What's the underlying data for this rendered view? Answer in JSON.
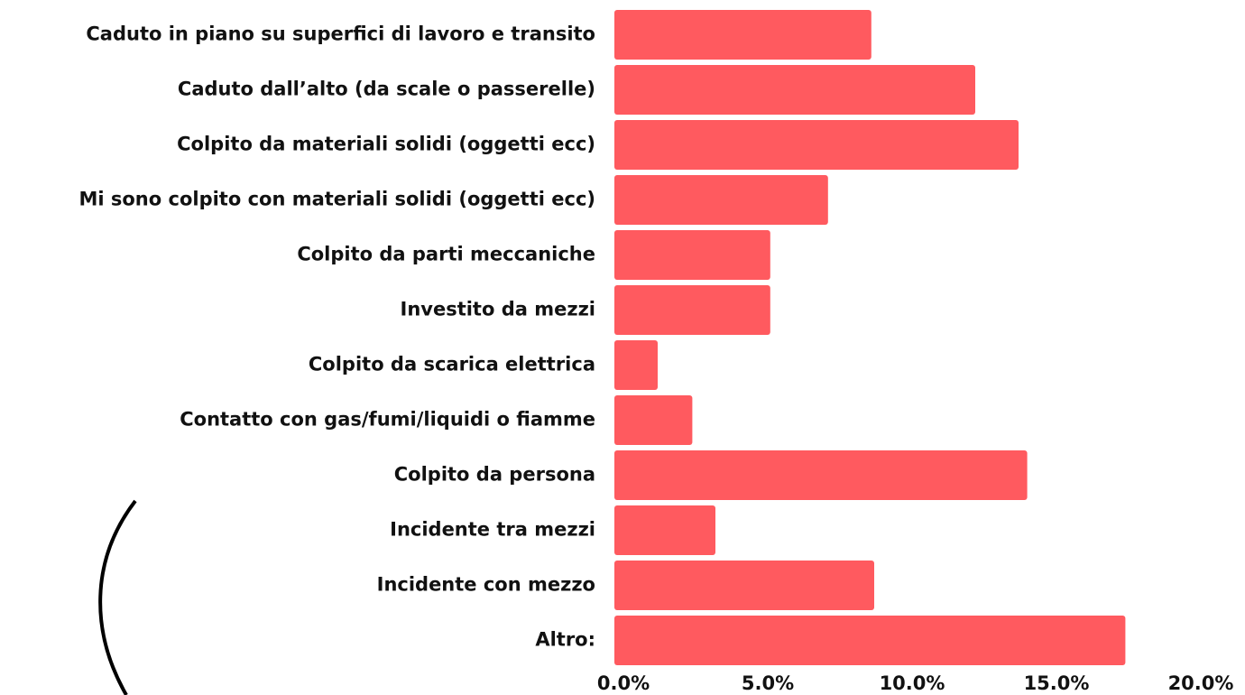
{
  "chart_data": {
    "type": "bar",
    "orientation": "horizontal",
    "categories": [
      "Caduto in piano su superfici di lavoro e transito",
      "Caduto dall’alto (da scale o passerelle)",
      "Colpito da materiali solidi (oggetti ecc)",
      "Mi sono colpito con materiali solidi (oggetti ecc)",
      "Colpito da parti meccaniche",
      "Investito da mezzi",
      "Colpito da scarica elettrica",
      "Contatto con gas/fumi/liquidi o fiamme",
      "Colpito da persona",
      "Incidente tra mezzi",
      "Incidente con mezzo",
      "Altro:"
    ],
    "values": [
      8.9,
      12.5,
      14.0,
      7.4,
      5.4,
      5.4,
      1.5,
      2.7,
      14.3,
      3.5,
      9.0,
      17.7
    ],
    "color": "#ff5a5f",
    "xlim": [
      0,
      20
    ],
    "xticks": [
      {
        "value": 0,
        "label": "0.0%"
      },
      {
        "value": 5,
        "label": "5.0%"
      },
      {
        "value": 10,
        "label": "10.0%"
      },
      {
        "value": 15,
        "label": "15.0%"
      },
      {
        "value": 20,
        "label": "20.0%"
      }
    ],
    "grid": false
  }
}
